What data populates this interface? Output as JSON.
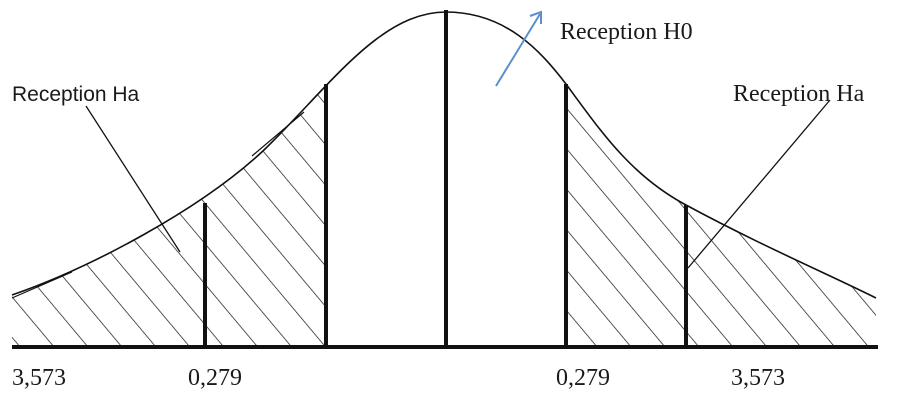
{
  "labels": {
    "reception_h0": "Reception H0",
    "reception_ha_left": "Reception Ha",
    "reception_ha_right": "Reception Ha"
  },
  "axis": {
    "tick_far_left": "3,573",
    "tick_inner_left": "0,279",
    "tick_inner_right": "0,279",
    "tick_far_right": "3,573"
  },
  "colors": {
    "ink": "#111111",
    "arrow": "#5b8fd1",
    "background": "#ffffff"
  }
}
